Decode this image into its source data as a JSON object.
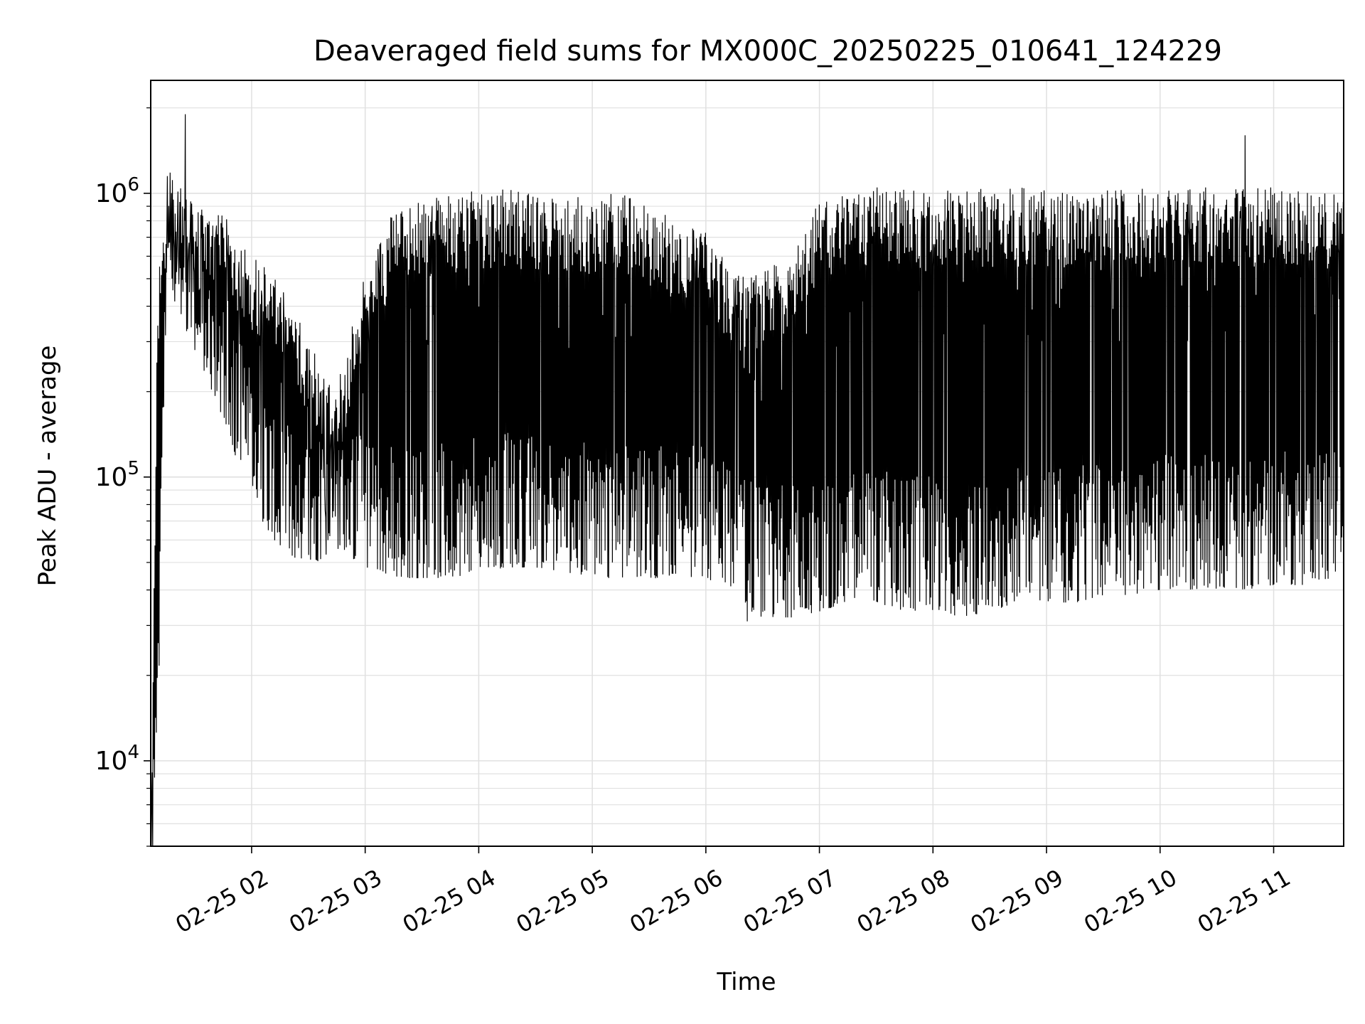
{
  "chart_data": {
    "type": "line",
    "title": "Deaveraged field sums for MX000C_20250225_010641_124229",
    "xlabel": "Time",
    "ylabel": "Peak ADU - average",
    "yscale": "log",
    "ylim": [
      5000,
      2500000
    ],
    "xlim": [
      "2025-02-25 01:06:41",
      "2025-02-25 11:37:00"
    ],
    "grid": true,
    "line_color": "#000000",
    "x_tick_labels": [
      "02-25 02",
      "02-25 03",
      "02-25 04",
      "02-25 05",
      "02-25 06",
      "02-25 07",
      "02-25 08",
      "02-25 09",
      "02-25 10",
      "02-25 11"
    ],
    "x_ticks": [
      "2025-02-25 02:00",
      "2025-02-25 03:00",
      "2025-02-25 04:00",
      "2025-02-25 05:00",
      "2025-02-25 06:00",
      "2025-02-25 07:00",
      "2025-02-25 08:00",
      "2025-02-25 09:00",
      "2025-02-25 10:00",
      "2025-02-25 11:00"
    ],
    "y_ticks": [
      {
        "value": 10000,
        "base": "10",
        "exp": "4"
      },
      {
        "value": 100000,
        "base": "10",
        "exp": "5"
      },
      {
        "value": 1000000,
        "base": "10",
        "exp": "6"
      }
    ],
    "series": [
      {
        "style": "dense oscillating signal, alternating high and low values each sample",
        "envelope_x": [
          "2025-02-25 01:07",
          "2025-02-25 01:10",
          "2025-02-25 01:15",
          "2025-02-25 01:20",
          "2025-02-25 01:30",
          "2025-02-25 01:45",
          "2025-02-25 02:00",
          "2025-02-25 02:15",
          "2025-02-25 02:30",
          "2025-02-25 02:45",
          "2025-02-25 03:00",
          "2025-02-25 03:15",
          "2025-02-25 03:30",
          "2025-02-25 03:45",
          "2025-02-25 04:00",
          "2025-02-25 04:15",
          "2025-02-25 04:30",
          "2025-02-25 04:45",
          "2025-02-25 05:00",
          "2025-02-25 05:15",
          "2025-02-25 05:30",
          "2025-02-25 05:45",
          "2025-02-25 06:00",
          "2025-02-25 06:15",
          "2025-02-25 06:30",
          "2025-02-25 06:45",
          "2025-02-25 07:00",
          "2025-02-25 07:15",
          "2025-02-25 07:30",
          "2025-02-25 07:45",
          "2025-02-25 08:00",
          "2025-02-25 08:15",
          "2025-02-25 08:30",
          "2025-02-25 08:45",
          "2025-02-25 09:00",
          "2025-02-25 09:15",
          "2025-02-25 09:30",
          "2025-02-25 09:45",
          "2025-02-25 10:00",
          "2025-02-25 10:15",
          "2025-02-25 10:30",
          "2025-02-25 10:45",
          "2025-02-25 11:00",
          "2025-02-25 11:15",
          "2025-02-25 11:30",
          "2025-02-25 11:37"
        ],
        "high": [
          5000,
          420000,
          1000000,
          1100000,
          850000,
          800000,
          600000,
          450000,
          300000,
          200000,
          500000,
          850000,
          900000,
          950000,
          980000,
          1000000,
          950000,
          900000,
          950000,
          950000,
          900000,
          750000,
          700000,
          500000,
          500000,
          600000,
          900000,
          950000,
          1000000,
          1000000,
          950000,
          1000000,
          1000000,
          1000000,
          1000000,
          950000,
          1000000,
          1000000,
          1000000,
          1000000,
          1000000,
          1000000,
          1000000,
          1000000,
          950000,
          950000
        ],
        "low": [
          5000,
          8000,
          600000,
          500000,
          350000,
          200000,
          100000,
          70000,
          60000,
          70000,
          60000,
          55000,
          55000,
          55000,
          58000,
          60000,
          60000,
          58000,
          55000,
          55000,
          55000,
          55000,
          55000,
          45000,
          40000,
          40000,
          42000,
          45000,
          45000,
          42000,
          42000,
          40000,
          42000,
          45000,
          45000,
          45000,
          48000,
          48000,
          50000,
          50000,
          50000,
          50000,
          52000,
          52000,
          55000,
          55000
        ]
      }
    ],
    "notable_points": [
      {
        "x": "2025-02-25 01:25",
        "y": 1900000
      },
      {
        "x": "2025-02-25 10:45",
        "y": 1600000
      },
      {
        "x": "2025-02-25 06:22",
        "y": 31000
      }
    ]
  }
}
